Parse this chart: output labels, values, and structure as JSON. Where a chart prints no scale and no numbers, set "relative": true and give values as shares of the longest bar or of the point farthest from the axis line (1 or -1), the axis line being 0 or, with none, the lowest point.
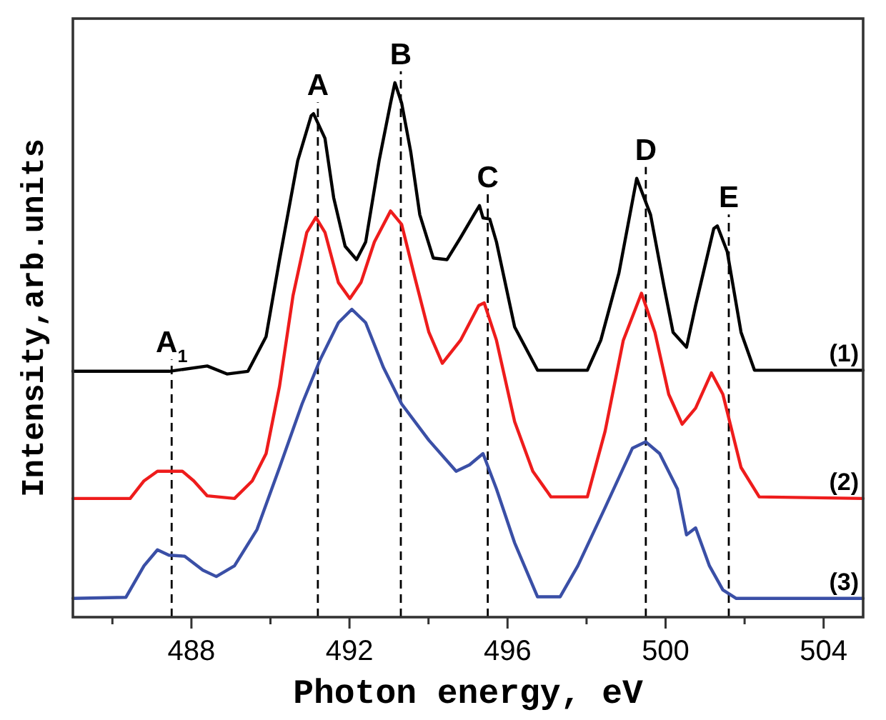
{
  "chart_data": {
    "type": "line",
    "relative": true,
    "xlabel": "Photon energy, eV",
    "ylabel": "Intensity,arb.units",
    "xlim": [
      485,
      505
    ],
    "xticks": [
      {
        "value": 486,
        "label": null
      },
      488,
      {
        "value": 490,
        "label": null
      },
      492,
      {
        "value": 494,
        "label": null
      },
      496,
      {
        "value": 498,
        "label": null
      },
      500,
      {
        "value": 502,
        "label": null
      },
      504
    ],
    "grid": false,
    "ref_lines": [
      {
        "axis": "x",
        "value": 487.5,
        "label": "A$_{1}$",
        "line_style": "dashed",
        "color": "#000000"
      },
      {
        "axis": "x",
        "value": 491.2,
        "label": "A",
        "line_style": "dashed",
        "color": "#000000"
      },
      {
        "axis": "x",
        "value": 493.3,
        "label": "B",
        "line_style": "dashed",
        "color": "#000000"
      },
      {
        "axis": "x",
        "value": 495.5,
        "label": "C",
        "line_style": "dashed",
        "color": "#000000"
      },
      {
        "axis": "x",
        "value": 499.5,
        "label": "D",
        "line_style": "dashed",
        "color": "#000000"
      },
      {
        "axis": "x",
        "value": 501.6,
        "label": "E",
        "line_style": "dashed",
        "color": "#000000"
      }
    ],
    "series": [
      {
        "name": "(1)",
        "color": "#000000",
        "x": [
          485.0,
          487.44,
          488.4,
          488.9,
          489.43,
          489.89,
          490.23,
          490.69,
          491.03,
          491.09,
          491.38,
          491.6,
          491.89,
          492.18,
          492.41,
          492.75,
          493.04,
          493.15,
          493.32,
          493.55,
          493.78,
          494.12,
          494.47,
          494.81,
          495.15,
          495.29,
          495.38,
          495.55,
          495.72,
          496.18,
          496.76,
          498.02,
          498.36,
          498.82,
          499.27,
          499.62,
          499.96,
          500.19,
          500.53,
          500.76,
          501.22,
          501.31,
          501.56,
          501.91,
          502.25,
          505
        ],
        "values": [
          0.46,
          0.46,
          0.47,
          0.455,
          0.46,
          0.525,
          0.669,
          0.854,
          0.938,
          0.942,
          0.896,
          0.785,
          0.694,
          0.669,
          0.702,
          0.854,
          0.962,
          1.0,
          0.962,
          0.871,
          0.753,
          0.672,
          0.669,
          0.71,
          0.753,
          0.77,
          0.747,
          0.745,
          0.702,
          0.543,
          0.462,
          0.462,
          0.518,
          0.644,
          0.821,
          0.753,
          0.619,
          0.533,
          0.505,
          0.583,
          0.727,
          0.732,
          0.684,
          0.533,
          0.462,
          0.462
        ]
      },
      {
        "name": "(2)",
        "color": "#ee1c1c",
        "x": [
          485.0,
          486.45,
          486.8,
          487.14,
          487.77,
          488.06,
          488.4,
          489.09,
          489.54,
          489.89,
          490.23,
          490.57,
          490.92,
          491.15,
          491.38,
          491.72,
          492.01,
          492.29,
          492.63,
          493.04,
          493.32,
          493.66,
          494.01,
          494.35,
          494.81,
          495.27,
          495.41,
          495.72,
          496.18,
          496.64,
          497.1,
          498.02,
          498.47,
          498.93,
          499.39,
          499.73,
          500.08,
          500.42,
          500.76,
          501.16,
          501.45,
          501.91,
          502.37,
          505
        ],
        "values": [
          0.222,
          0.222,
          0.255,
          0.273,
          0.273,
          0.255,
          0.227,
          0.222,
          0.255,
          0.306,
          0.432,
          0.601,
          0.72,
          0.748,
          0.72,
          0.626,
          0.596,
          0.626,
          0.702,
          0.76,
          0.735,
          0.634,
          0.533,
          0.475,
          0.518,
          0.583,
          0.588,
          0.518,
          0.366,
          0.273,
          0.225,
          0.225,
          0.348,
          0.518,
          0.606,
          0.533,
          0.417,
          0.361,
          0.391,
          0.457,
          0.417,
          0.28,
          0.225,
          0.222
        ]
      },
      {
        "name": "(3)",
        "color": "#3a4fa6",
        "x": [
          485.0,
          486.34,
          486.8,
          487.14,
          487.43,
          487.83,
          488.29,
          488.63,
          489.09,
          489.66,
          490.23,
          490.8,
          491.26,
          491.72,
          492.06,
          492.41,
          492.86,
          493.32,
          494.01,
          494.7,
          495.04,
          495.38,
          495.72,
          496.18,
          496.76,
          497.33,
          497.78,
          498.47,
          499.16,
          499.5,
          499.85,
          500.3,
          500.53,
          500.76,
          501.11,
          501.45,
          501.79,
          505
        ],
        "values": [
          0.035,
          0.037,
          0.096,
          0.126,
          0.116,
          0.114,
          0.088,
          0.076,
          0.096,
          0.164,
          0.28,
          0.399,
          0.482,
          0.551,
          0.576,
          0.551,
          0.467,
          0.399,
          0.331,
          0.273,
          0.285,
          0.306,
          0.24,
          0.139,
          0.038,
          0.038,
          0.096,
          0.205,
          0.316,
          0.328,
          0.306,
          0.24,
          0.154,
          0.167,
          0.096,
          0.051,
          0.035,
          0.035
        ]
      }
    ]
  }
}
